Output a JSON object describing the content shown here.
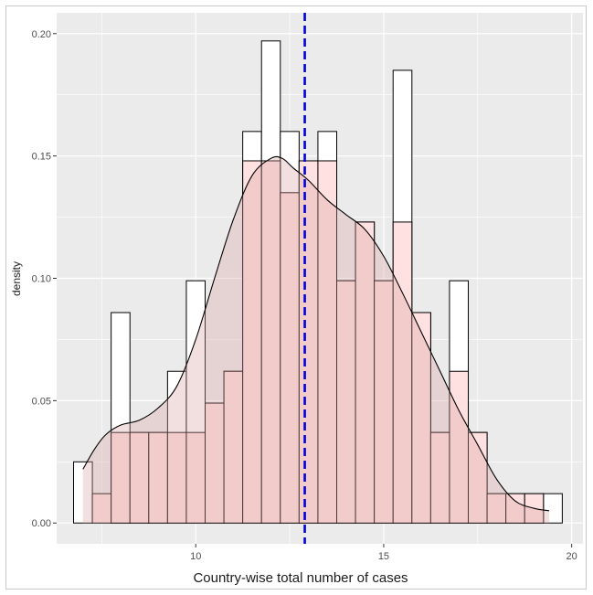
{
  "chart_data": {
    "type": "bar",
    "xlabel": "Country-wise total number of cases",
    "ylabel": "density",
    "xlim": [
      6.3,
      20.3
    ],
    "ylim": [
      -0.0085,
      0.2085
    ],
    "x_ticks": [
      10,
      15,
      20
    ],
    "y_ticks": [
      0.0,
      0.05,
      0.1,
      0.15,
      0.2
    ],
    "y_tick_labels": [
      "0.00",
      "0.05",
      "0.10",
      "0.15",
      "0.20"
    ],
    "grid": true,
    "bin_width": 0.5,
    "histogram": {
      "bin_starts": [
        6.75,
        7.25,
        7.75,
        8.25,
        8.75,
        9.25,
        9.75,
        10.25,
        10.75,
        11.25,
        11.75,
        12.25,
        12.75,
        13.25,
        13.75,
        14.25,
        14.75,
        15.25,
        15.75,
        16.25,
        16.75,
        17.25,
        17.75,
        18.25,
        18.75,
        19.25
      ],
      "values": [
        0.025,
        0,
        0.086,
        0.037,
        0.037,
        0.062,
        0.099,
        0.049,
        0.062,
        0.16,
        0.197,
        0.16,
        0.148,
        0.16,
        0.099,
        0.123,
        0.099,
        0.185,
        0.086,
        0.037,
        0.099,
        0.037,
        0.012,
        0.012,
        0.012,
        0.012
      ],
      "fill": "#ffffff",
      "stroke": "#000000"
    },
    "pink_histogram": {
      "bin_starts": [
        7.25,
        7.75,
        8.25,
        8.75,
        9.25,
        9.75,
        10.25,
        10.75,
        11.25,
        11.75,
        12.25,
        12.75,
        13.25,
        13.75,
        14.25,
        14.75,
        15.25,
        15.75,
        16.25,
        16.75,
        17.25,
        17.75,
        18.25,
        18.75
      ],
      "values": [
        0.012,
        0.037,
        0.037,
        0.037,
        0.037,
        0.037,
        0.049,
        0.062,
        0.148,
        0.148,
        0.135,
        0.148,
        0.148,
        0.099,
        0.123,
        0.099,
        0.123,
        0.086,
        0.037,
        0.062,
        0.037,
        0.012,
        0.012,
        0.012
      ],
      "fill": "#ffe1e1",
      "stroke": "#000000"
    },
    "density_curve": {
      "x": [
        7.0,
        7.3,
        7.6,
        8.0,
        8.5,
        9.0,
        9.5,
        10.0,
        10.5,
        11.0,
        11.5,
        12.0,
        12.3,
        12.6,
        13.0,
        13.5,
        14.0,
        14.5,
        15.0,
        15.5,
        16.0,
        16.5,
        17.0,
        17.5,
        18.0,
        18.5,
        19.0,
        19.4
      ],
      "y": [
        0.022,
        0.03,
        0.036,
        0.04,
        0.042,
        0.047,
        0.056,
        0.075,
        0.1,
        0.124,
        0.142,
        0.149,
        0.149,
        0.145,
        0.14,
        0.132,
        0.126,
        0.12,
        0.109,
        0.094,
        0.078,
        0.062,
        0.046,
        0.032,
        0.018,
        0.009,
        0.006,
        0.005
      ],
      "fill": "#d9a3a3",
      "fill_opacity": 0.35,
      "stroke": "#000000"
    },
    "mean_line": {
      "x": 12.9,
      "color": "#0000dd",
      "style": "dashed"
    },
    "panel_background": "#ebebeb",
    "grid_color": "#ffffff"
  }
}
